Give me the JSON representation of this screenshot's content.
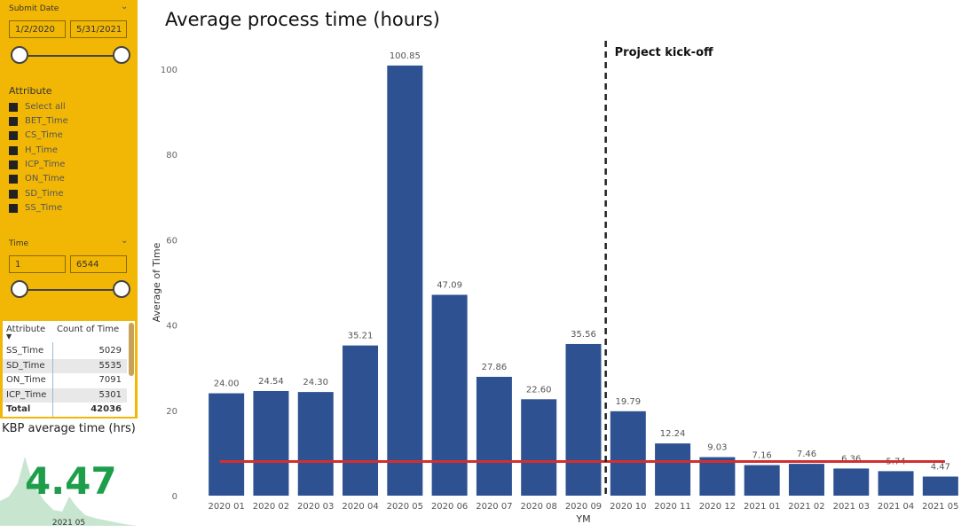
{
  "slicers": {
    "submit_date": {
      "label": "Submit Date",
      "start": "1/2/2020",
      "end": "5/31/2021"
    },
    "attribute": {
      "label": "Attribute",
      "items": [
        "Select all",
        "BET_Time",
        "CS_Time",
        "H_Time",
        "ICP_Time",
        "ON_Time",
        "SD_Time",
        "SS_Time"
      ]
    },
    "time": {
      "label": "Time",
      "min": "1",
      "max": "6544"
    }
  },
  "table": {
    "headers": [
      "Attribute",
      "Count of Time"
    ],
    "rows": [
      {
        "name": "SS_Time",
        "count": "5029"
      },
      {
        "name": "SD_Time",
        "count": "5535"
      },
      {
        "name": "ON_Time",
        "count": "7091"
      },
      {
        "name": "ICP_Time",
        "count": "5301"
      }
    ],
    "total_label": "Total",
    "total_value": "42036"
  },
  "kpi": {
    "title": "KBP average time (hrs)",
    "value": "4.47",
    "check": "✓",
    "period": "2021 05"
  },
  "colors": {
    "panel": "#f2b705",
    "bar": "#2d5191",
    "target_line": "#d32f2f",
    "kpi_green": "#1e9e4a"
  },
  "chart_data": {
    "type": "bar",
    "title": "Average process time (hours)",
    "xlabel": "YM",
    "ylabel": "Average of Time",
    "ylim": [
      0,
      105
    ],
    "yticks": [
      0,
      20,
      40,
      60,
      80,
      100
    ],
    "categories": [
      "2020 01",
      "2020 02",
      "2020 03",
      "2020 04",
      "2020 05",
      "2020 06",
      "2020 07",
      "2020 08",
      "2020 09",
      "2020 10",
      "2020 11",
      "2020 12",
      "2021 01",
      "2021 02",
      "2021 03",
      "2021 04",
      "2021 05"
    ],
    "values": [
      24.0,
      24.54,
      24.3,
      35.21,
      100.85,
      47.09,
      27.86,
      22.6,
      35.56,
      19.79,
      12.24,
      9.03,
      7.16,
      7.46,
      6.36,
      5.74,
      4.47
    ],
    "labels": [
      "24.00",
      "24.54",
      "24.30",
      "35.21",
      "100.85",
      "47.09",
      "27.86",
      "22.60",
      "35.56",
      "19.79",
      "12.24",
      "9.03",
      "7.16",
      "7.46",
      "6.36",
      "5.74",
      "4.47"
    ],
    "reference_line": {
      "y": 8.0
    },
    "annotation": {
      "text": "Project kick-off",
      "between": [
        "2020 09",
        "2020 10"
      ]
    },
    "grid": false
  }
}
